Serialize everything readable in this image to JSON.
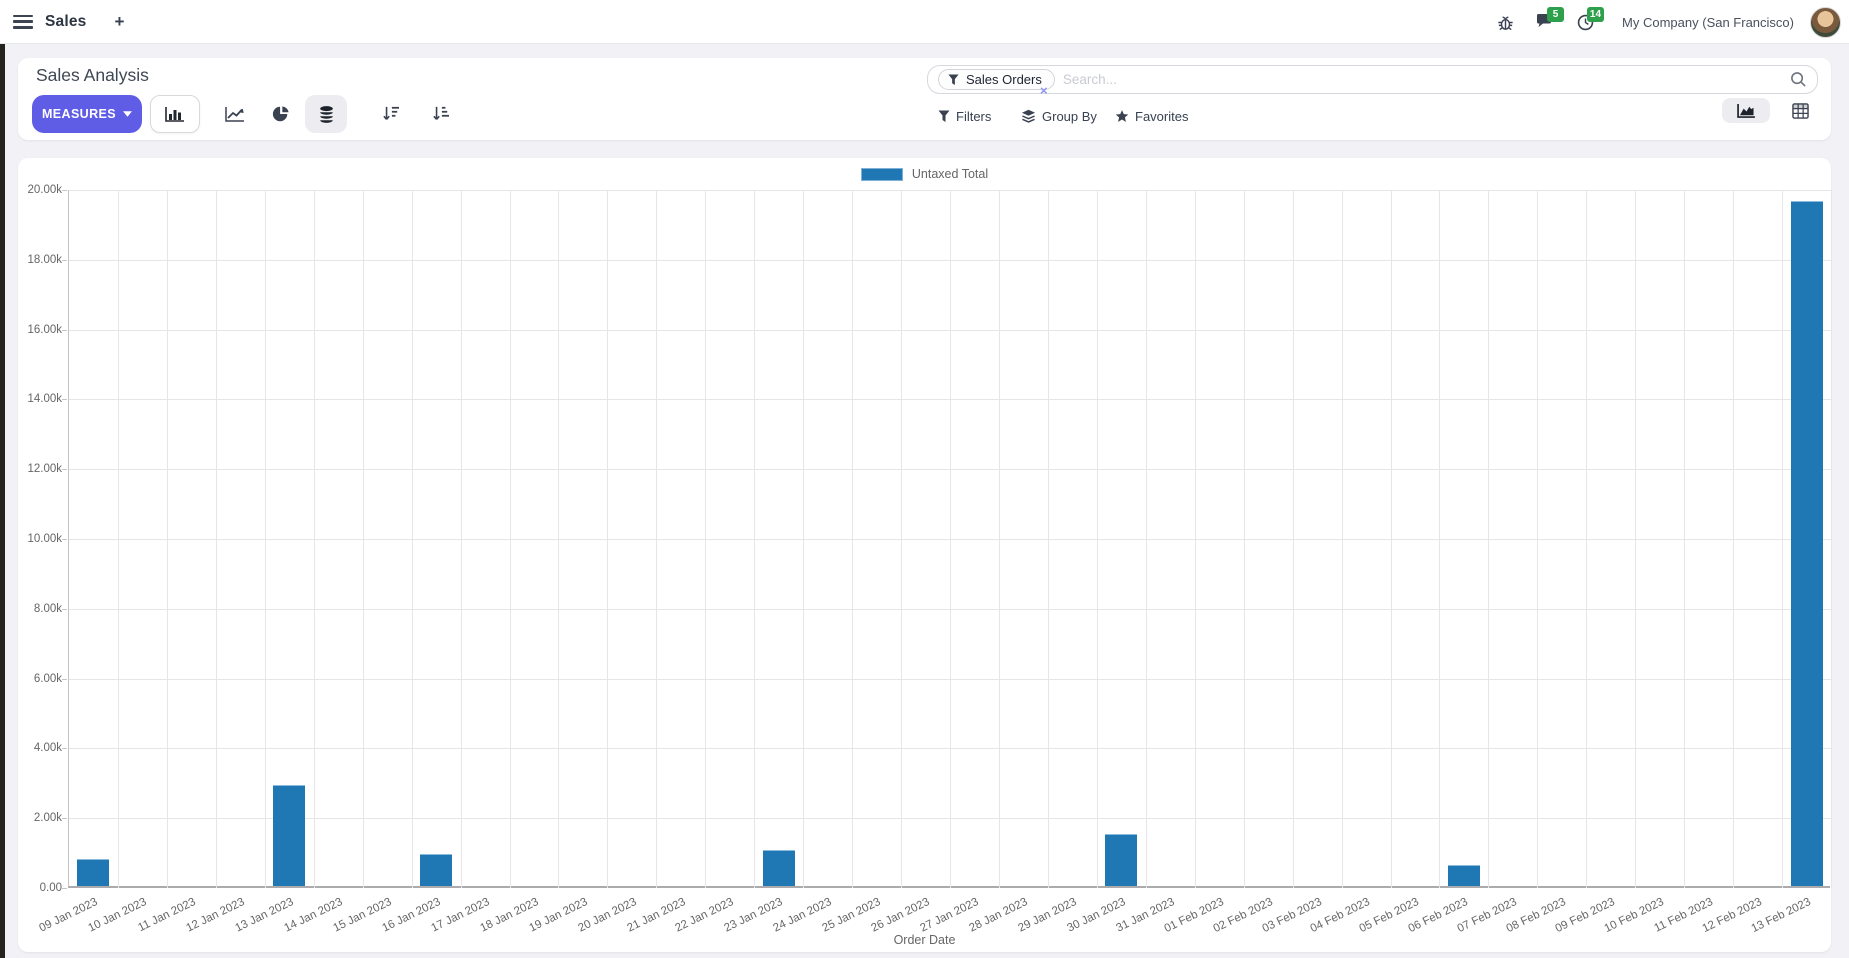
{
  "top_bar": {
    "app_name": "Sales",
    "new_tab_label": "+",
    "messages_badge": "5",
    "activities_badge": "14",
    "company": "My Company (San Francisco)"
  },
  "control_panel": {
    "title": "Sales Analysis",
    "measures_label": "MEASURES",
    "search": {
      "facet_label": "Sales Orders",
      "facet_remove": "×",
      "placeholder": "Search..."
    },
    "menus": {
      "filters": "Filters",
      "group_by": "Group By",
      "favorites": "Favorites"
    }
  },
  "colors": {
    "accent": "#5f5ce6",
    "bar_blue": "#1f77b4",
    "badge_green": "#2ea04c"
  },
  "chart_data": {
    "type": "bar",
    "title": "",
    "legend": [
      "Untaxed Total"
    ],
    "legend_position": "top",
    "xlabel": "Order Date",
    "ylabel": "",
    "ylim": [
      0,
      20000
    ],
    "ytick_step": 2000,
    "grid": true,
    "categories": [
      "09 Jan 2023",
      "10 Jan 2023",
      "11 Jan 2023",
      "12 Jan 2023",
      "13 Jan 2023",
      "14 Jan 2023",
      "15 Jan 2023",
      "16 Jan 2023",
      "17 Jan 2023",
      "18 Jan 2023",
      "19 Jan 2023",
      "20 Jan 2023",
      "21 Jan 2023",
      "22 Jan 2023",
      "23 Jan 2023",
      "24 Jan 2023",
      "25 Jan 2023",
      "26 Jan 2023",
      "27 Jan 2023",
      "28 Jan 2023",
      "29 Jan 2023",
      "30 Jan 2023",
      "31 Jan 2023",
      "01 Feb 2023",
      "02 Feb 2023",
      "03 Feb 2023",
      "04 Feb 2023",
      "05 Feb 2023",
      "06 Feb 2023",
      "07 Feb 2023",
      "08 Feb 2023",
      "09 Feb 2023",
      "10 Feb 2023",
      "11 Feb 2023",
      "12 Feb 2023",
      "13 Feb 2023"
    ],
    "series": [
      {
        "name": "Untaxed Total",
        "values": [
          770,
          0,
          0,
          0,
          2890,
          0,
          0,
          910,
          0,
          0,
          0,
          0,
          0,
          0,
          1030,
          0,
          0,
          0,
          0,
          0,
          0,
          1490,
          0,
          0,
          0,
          0,
          0,
          0,
          600,
          0,
          0,
          0,
          0,
          0,
          0,
          19630
        ]
      }
    ]
  }
}
